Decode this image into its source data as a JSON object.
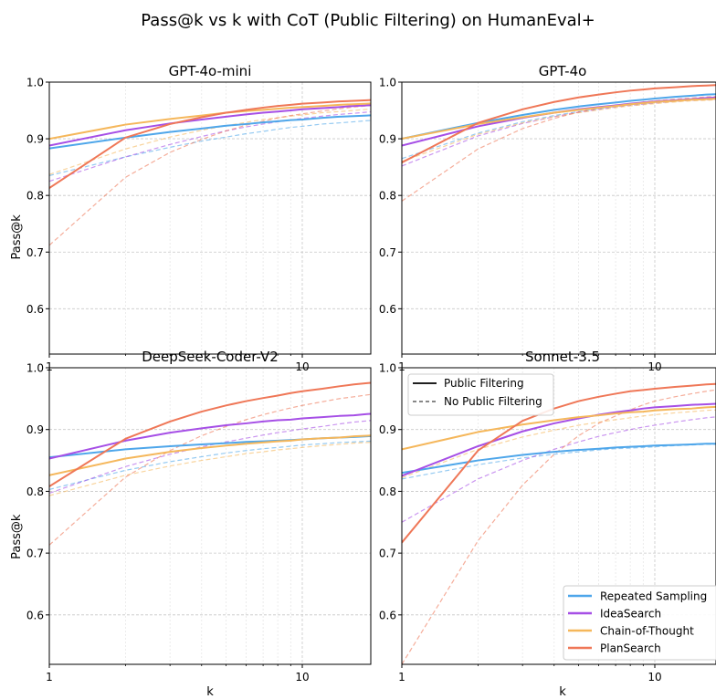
{
  "title": "Pass@k vs k with CoT (Public Filtering) on HumanEval+",
  "colors": {
    "Repeated Sampling": "#4ea6ea",
    "IdeaSearch": "#a64fe6",
    "Chain-of-Thought": "#f5b75b",
    "PlanSearch": "#ef7757"
  },
  "style_legend": {
    "solid_label": "Public Filtering",
    "dashed_label": "No Public Filtering"
  },
  "chart_data": [
    {
      "type": "line",
      "title": "GPT-4o-mini",
      "xlabel": "",
      "ylabel": "Pass@k",
      "xscale": "log",
      "xlim": [
        1,
        20
      ],
      "ylim": [
        0.52,
        1.0
      ],
      "xticks": [
        1,
        10
      ],
      "yticks": [
        0.6,
        0.7,
        0.8,
        0.9,
        1.0
      ],
      "x": [
        1,
        2,
        3,
        4,
        5,
        6,
        7,
        8,
        9,
        10,
        12,
        14,
        16,
        18,
        20
      ],
      "series": [
        {
          "name": "Repeated Sampling",
          "style": "solid",
          "values": [
            0.883,
            0.902,
            0.912,
            0.918,
            0.923,
            0.926,
            0.929,
            0.931,
            0.933,
            0.934,
            0.937,
            0.939,
            0.94,
            0.941,
            0.942
          ]
        },
        {
          "name": "IdeaSearch",
          "style": "solid",
          "values": [
            0.888,
            0.915,
            0.927,
            0.934,
            0.939,
            0.943,
            0.946,
            0.948,
            0.95,
            0.952,
            0.954,
            0.956,
            0.958,
            0.959,
            0.96
          ]
        },
        {
          "name": "Chain-of-Thought",
          "style": "solid",
          "values": [
            0.9,
            0.925,
            0.935,
            0.941,
            0.946,
            0.949,
            0.951,
            0.953,
            0.955,
            0.956,
            0.958,
            0.96,
            0.961,
            0.962,
            0.963
          ]
        },
        {
          "name": "PlanSearch",
          "style": "solid",
          "values": [
            0.813,
            0.902,
            0.926,
            0.938,
            0.946,
            0.951,
            0.955,
            0.958,
            0.96,
            0.962,
            0.964,
            0.966,
            0.967,
            0.968,
            0.969
          ]
        },
        {
          "name": "Repeated Sampling",
          "style": "dashed",
          "values": [
            0.835,
            0.868,
            0.885,
            0.896,
            0.903,
            0.909,
            0.913,
            0.917,
            0.92,
            0.922,
            0.926,
            0.928,
            0.93,
            0.932,
            0.933
          ]
        },
        {
          "name": "IdeaSearch",
          "style": "dashed",
          "values": [
            0.825,
            0.868,
            0.89,
            0.904,
            0.914,
            0.921,
            0.926,
            0.93,
            0.933,
            0.936,
            0.94,
            0.943,
            0.945,
            0.947,
            0.949
          ]
        },
        {
          "name": "Chain-of-Thought",
          "style": "dashed",
          "values": [
            0.837,
            0.882,
            0.903,
            0.915,
            0.923,
            0.929,
            0.934,
            0.937,
            0.94,
            0.942,
            0.946,
            0.948,
            0.95,
            0.952,
            0.953
          ]
        },
        {
          "name": "PlanSearch",
          "style": "dashed",
          "values": [
            0.712,
            0.832,
            0.876,
            0.899,
            0.914,
            0.924,
            0.931,
            0.937,
            0.941,
            0.944,
            0.949,
            0.953,
            0.956,
            0.958,
            0.96
          ]
        }
      ]
    },
    {
      "type": "line",
      "title": "GPT-4o",
      "xlabel": "",
      "ylabel": "",
      "xscale": "log",
      "xlim": [
        1,
        20
      ],
      "ylim": [
        0.52,
        1.0
      ],
      "xticks": [
        1,
        10
      ],
      "yticks": [
        0.6,
        0.7,
        0.8,
        0.9,
        1.0
      ],
      "x": [
        1,
        2,
        3,
        4,
        5,
        6,
        7,
        8,
        9,
        10,
        12,
        14,
        16,
        18,
        20
      ],
      "series": [
        {
          "name": "Repeated Sampling",
          "style": "solid",
          "values": [
            0.9,
            0.928,
            0.942,
            0.951,
            0.957,
            0.961,
            0.964,
            0.967,
            0.969,
            0.971,
            0.974,
            0.976,
            0.978,
            0.979,
            0.98
          ]
        },
        {
          "name": "IdeaSearch",
          "style": "solid",
          "values": [
            0.888,
            0.922,
            0.937,
            0.946,
            0.952,
            0.956,
            0.959,
            0.962,
            0.964,
            0.966,
            0.968,
            0.97,
            0.972,
            0.973,
            0.974
          ]
        },
        {
          "name": "Chain-of-Thought",
          "style": "solid",
          "values": [
            0.9,
            0.926,
            0.938,
            0.946,
            0.951,
            0.955,
            0.958,
            0.961,
            0.963,
            0.965,
            0.967,
            0.969,
            0.97,
            0.971,
            0.972
          ]
        },
        {
          "name": "PlanSearch",
          "style": "solid",
          "values": [
            0.858,
            0.928,
            0.952,
            0.965,
            0.973,
            0.978,
            0.982,
            0.985,
            0.987,
            0.989,
            0.991,
            0.993,
            0.994,
            0.995,
            0.996
          ]
        },
        {
          "name": "Repeated Sampling",
          "style": "dashed",
          "values": [
            0.865,
            0.91,
            0.93,
            0.941,
            0.948,
            0.953,
            0.957,
            0.96,
            0.962,
            0.964,
            0.967,
            0.969,
            0.971,
            0.972,
            0.973
          ]
        },
        {
          "name": "IdeaSearch",
          "style": "dashed",
          "values": [
            0.852,
            0.905,
            0.927,
            0.939,
            0.947,
            0.952,
            0.956,
            0.959,
            0.961,
            0.963,
            0.966,
            0.968,
            0.969,
            0.97,
            0.971
          ]
        },
        {
          "name": "Chain-of-Thought",
          "style": "dashed",
          "values": [
            0.86,
            0.908,
            0.928,
            0.939,
            0.946,
            0.951,
            0.955,
            0.958,
            0.96,
            0.962,
            0.965,
            0.967,
            0.968,
            0.969,
            0.97
          ]
        },
        {
          "name": "PlanSearch",
          "style": "dashed",
          "values": [
            0.79,
            0.882,
            0.918,
            0.936,
            0.947,
            0.954,
            0.959,
            0.962,
            0.965,
            0.967,
            0.97,
            0.972,
            0.974,
            0.975,
            0.976
          ]
        }
      ]
    },
    {
      "type": "line",
      "title": "DeepSeek-Coder-V2",
      "xlabel": "k",
      "ylabel": "Pass@k",
      "xscale": "log",
      "xlim": [
        1,
        20
      ],
      "ylim": [
        0.52,
        1.0
      ],
      "xticks": [
        1,
        10
      ],
      "yticks": [
        0.6,
        0.7,
        0.8,
        0.9,
        1.0
      ],
      "x": [
        1,
        2,
        3,
        4,
        5,
        6,
        7,
        8,
        9,
        10,
        12,
        14,
        16,
        18,
        20
      ],
      "series": [
        {
          "name": "Repeated Sampling",
          "style": "solid",
          "values": [
            0.855,
            0.868,
            0.873,
            0.876,
            0.878,
            0.88,
            0.881,
            0.882,
            0.883,
            0.884,
            0.886,
            0.887,
            0.888,
            0.889,
            0.89
          ]
        },
        {
          "name": "IdeaSearch",
          "style": "solid",
          "values": [
            0.853,
            0.882,
            0.895,
            0.902,
            0.907,
            0.91,
            0.913,
            0.915,
            0.916,
            0.918,
            0.92,
            0.922,
            0.923,
            0.925,
            0.926
          ]
        },
        {
          "name": "Chain-of-Thought",
          "style": "solid",
          "values": [
            0.826,
            0.853,
            0.864,
            0.87,
            0.874,
            0.877,
            0.879,
            0.881,
            0.882,
            0.884,
            0.886,
            0.887,
            0.889,
            0.89,
            0.891
          ]
        },
        {
          "name": "PlanSearch",
          "style": "solid",
          "values": [
            0.808,
            0.885,
            0.913,
            0.929,
            0.939,
            0.946,
            0.951,
            0.955,
            0.959,
            0.962,
            0.966,
            0.97,
            0.973,
            0.975,
            0.977
          ]
        },
        {
          "name": "Repeated Sampling",
          "style": "dashed",
          "values": [
            0.803,
            0.834,
            0.848,
            0.856,
            0.862,
            0.866,
            0.869,
            0.871,
            0.873,
            0.875,
            0.877,
            0.879,
            0.88,
            0.881,
            0.882
          ]
        },
        {
          "name": "IdeaSearch",
          "style": "dashed",
          "values": [
            0.797,
            0.84,
            0.86,
            0.872,
            0.88,
            0.886,
            0.891,
            0.895,
            0.898,
            0.901,
            0.905,
            0.909,
            0.912,
            0.914,
            0.916
          ]
        },
        {
          "name": "Chain-of-Thought",
          "style": "dashed",
          "values": [
            0.793,
            0.826,
            0.841,
            0.85,
            0.856,
            0.861,
            0.864,
            0.867,
            0.869,
            0.871,
            0.874,
            0.876,
            0.878,
            0.879,
            0.88
          ]
        },
        {
          "name": "PlanSearch",
          "style": "dashed",
          "values": [
            0.713,
            0.823,
            0.866,
            0.89,
            0.905,
            0.916,
            0.924,
            0.93,
            0.935,
            0.939,
            0.945,
            0.95,
            0.953,
            0.956,
            0.958
          ]
        }
      ]
    },
    {
      "type": "line",
      "title": "Sonnet-3.5",
      "xlabel": "k",
      "ylabel": "",
      "xscale": "log",
      "xlim": [
        1,
        20
      ],
      "ylim": [
        0.52,
        1.0
      ],
      "xticks": [
        1,
        10
      ],
      "yticks": [
        0.6,
        0.7,
        0.8,
        0.9,
        1.0
      ],
      "legend": "bottom-right",
      "x": [
        1,
        2,
        3,
        4,
        5,
        6,
        7,
        8,
        9,
        10,
        12,
        14,
        16,
        18,
        20
      ],
      "series": [
        {
          "name": "Repeated Sampling",
          "style": "solid",
          "values": [
            0.83,
            0.85,
            0.859,
            0.864,
            0.867,
            0.869,
            0.871,
            0.872,
            0.873,
            0.874,
            0.875,
            0.876,
            0.877,
            0.877,
            0.878
          ]
        },
        {
          "name": "IdeaSearch",
          "style": "solid",
          "values": [
            0.825,
            0.873,
            0.897,
            0.91,
            0.918,
            0.924,
            0.928,
            0.931,
            0.934,
            0.936,
            0.938,
            0.94,
            0.941,
            0.942,
            0.943
          ]
        },
        {
          "name": "Chain-of-Thought",
          "style": "solid",
          "values": [
            0.868,
            0.896,
            0.908,
            0.915,
            0.92,
            0.923,
            0.926,
            0.928,
            0.929,
            0.931,
            0.933,
            0.934,
            0.936,
            0.937,
            0.938
          ]
        },
        {
          "name": "PlanSearch",
          "style": "solid",
          "values": [
            0.717,
            0.866,
            0.914,
            0.934,
            0.946,
            0.953,
            0.958,
            0.962,
            0.964,
            0.966,
            0.969,
            0.971,
            0.973,
            0.974,
            0.975
          ]
        },
        {
          "name": "Repeated Sampling",
          "style": "dashed",
          "values": [
            0.82,
            0.843,
            0.854,
            0.86,
            0.864,
            0.867,
            0.869,
            0.87,
            0.871,
            0.872,
            0.874,
            0.875,
            0.876,
            0.876,
            0.877
          ]
        },
        {
          "name": "IdeaSearch",
          "style": "dashed",
          "values": [
            0.75,
            0.82,
            0.85,
            0.868,
            0.88,
            0.889,
            0.895,
            0.9,
            0.904,
            0.907,
            0.912,
            0.916,
            0.919,
            0.921,
            0.923
          ]
        },
        {
          "name": "Chain-of-Thought",
          "style": "dashed",
          "values": [
            0.822,
            0.868,
            0.888,
            0.899,
            0.907,
            0.912,
            0.916,
            0.919,
            0.922,
            0.924,
            0.927,
            0.929,
            0.931,
            0.932,
            0.933
          ]
        },
        {
          "name": "PlanSearch",
          "style": "dashed",
          "values": [
            0.52,
            0.72,
            0.81,
            0.86,
            0.89,
            0.91,
            0.922,
            0.932,
            0.94,
            0.946,
            0.953,
            0.958,
            0.962,
            0.965,
            0.968
          ]
        }
      ]
    }
  ]
}
